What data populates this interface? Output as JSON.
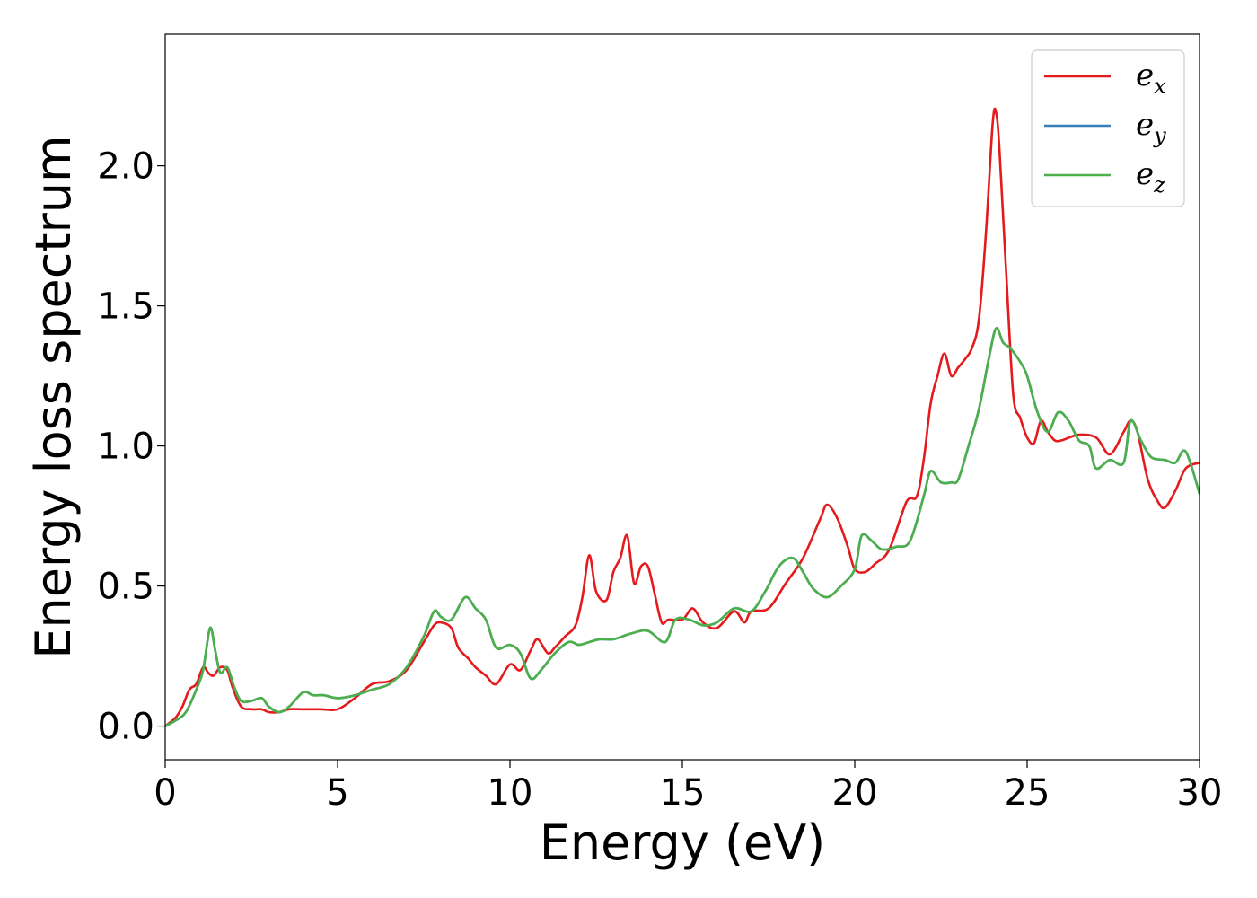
{
  "chart_data": {
    "type": "line",
    "title": "",
    "xlabel": "Energy (eV)",
    "ylabel": "Energy loss spectrum",
    "xlim": [
      0,
      30
    ],
    "ylim": [
      -0.12,
      2.47
    ],
    "xticks": [
      0,
      5,
      10,
      15,
      20,
      25,
      30
    ],
    "xtick_labels": [
      "0",
      "5",
      "10",
      "15",
      "20",
      "25",
      "30"
    ],
    "yticks": [
      0.0,
      0.5,
      1.0,
      1.5,
      2.0
    ],
    "ytick_labels": [
      "0.0",
      "0.5",
      "1.0",
      "1.5",
      "2.0"
    ],
    "grid": false,
    "legend_position": "top-right",
    "series": [
      {
        "name": "e",
        "subscript": "x",
        "color": "#e41a1c",
        "x": [
          0,
          0.3,
          0.5,
          0.7,
          0.9,
          1.1,
          1.25,
          1.4,
          1.6,
          1.8,
          1.95,
          2.2,
          2.5,
          2.8,
          3.0,
          3.3,
          3.6,
          4.0,
          4.5,
          5.0,
          5.5,
          6.0,
          6.5,
          7.0,
          7.5,
          7.8,
          8.0,
          8.3,
          8.5,
          8.8,
          9.0,
          9.3,
          9.6,
          10.0,
          10.3,
          10.6,
          10.8,
          11.1,
          11.3,
          11.6,
          11.9,
          12.1,
          12.3,
          12.5,
          12.8,
          13.0,
          13.2,
          13.4,
          13.6,
          13.8,
          14.0,
          14.2,
          14.4,
          14.6,
          15.0,
          15.3,
          15.6,
          16.0,
          16.5,
          16.8,
          17.0,
          17.5,
          18.0,
          18.5,
          19.0,
          19.2,
          19.5,
          19.8,
          20.0,
          20.3,
          20.6,
          21.0,
          21.5,
          21.8,
          22.0,
          22.2,
          22.4,
          22.6,
          22.8,
          23.0,
          23.2,
          23.4,
          23.6,
          23.8,
          24.0,
          24.1,
          24.2,
          24.4,
          24.6,
          24.8,
          25.0,
          25.2,
          25.4,
          25.6,
          25.8,
          26.0,
          26.5,
          27.0,
          27.4,
          27.8,
          28.0,
          28.2,
          28.5,
          28.8,
          29.0,
          29.3,
          29.6,
          30.0
        ],
        "y": [
          0,
          0.03,
          0.07,
          0.13,
          0.15,
          0.21,
          0.19,
          0.18,
          0.21,
          0.2,
          0.14,
          0.07,
          0.06,
          0.06,
          0.05,
          0.05,
          0.06,
          0.06,
          0.06,
          0.06,
          0.1,
          0.15,
          0.16,
          0.2,
          0.3,
          0.36,
          0.37,
          0.35,
          0.28,
          0.24,
          0.21,
          0.18,
          0.15,
          0.22,
          0.2,
          0.27,
          0.31,
          0.26,
          0.28,
          0.32,
          0.36,
          0.46,
          0.61,
          0.48,
          0.45,
          0.55,
          0.6,
          0.68,
          0.51,
          0.57,
          0.57,
          0.47,
          0.37,
          0.38,
          0.38,
          0.42,
          0.37,
          0.35,
          0.41,
          0.37,
          0.41,
          0.42,
          0.51,
          0.6,
          0.74,
          0.79,
          0.74,
          0.64,
          0.56,
          0.55,
          0.58,
          0.63,
          0.8,
          0.82,
          0.95,
          1.15,
          1.25,
          1.33,
          1.25,
          1.28,
          1.31,
          1.35,
          1.45,
          1.75,
          2.15,
          2.19,
          2.05,
          1.6,
          1.18,
          1.1,
          1.03,
          1.01,
          1.09,
          1.05,
          1.02,
          1.02,
          1.04,
          1.03,
          0.97,
          1.05,
          1.09,
          1.05,
          0.88,
          0.8,
          0.78,
          0.84,
          0.92,
          0.94
        ]
      },
      {
        "name": "e",
        "subscript": "y",
        "color": "#377eb8",
        "x": [
          0,
          0.3,
          0.6,
          0.9,
          1.1,
          1.3,
          1.45,
          1.6,
          1.8,
          2.0,
          2.2,
          2.5,
          2.8,
          3.0,
          3.3,
          3.6,
          4.0,
          4.3,
          4.6,
          5.0,
          5.5,
          6.0,
          6.5,
          7.0,
          7.5,
          7.8,
          8.0,
          8.3,
          8.7,
          9.0,
          9.3,
          9.6,
          10.0,
          10.3,
          10.6,
          10.9,
          11.3,
          11.7,
          12.0,
          12.3,
          12.6,
          13.0,
          13.5,
          14.0,
          14.5,
          14.8,
          15.2,
          15.6,
          16.0,
          16.5,
          17.0,
          17.4,
          17.8,
          18.2,
          18.5,
          18.8,
          19.2,
          19.6,
          20.0,
          20.2,
          20.5,
          20.8,
          21.2,
          21.6,
          22.0,
          22.2,
          22.5,
          22.8,
          23.0,
          23.3,
          23.6,
          23.9,
          24.1,
          24.3,
          24.5,
          24.8,
          25.0,
          25.3,
          25.6,
          25.9,
          26.2,
          26.5,
          26.8,
          27.0,
          27.4,
          27.8,
          28.0,
          28.3,
          28.6,
          29.0,
          29.3,
          29.6,
          30.0
        ],
        "y": [
          0,
          0.02,
          0.05,
          0.13,
          0.2,
          0.35,
          0.27,
          0.19,
          0.21,
          0.14,
          0.09,
          0.09,
          0.1,
          0.07,
          0.05,
          0.07,
          0.12,
          0.11,
          0.11,
          0.1,
          0.11,
          0.13,
          0.15,
          0.21,
          0.32,
          0.41,
          0.39,
          0.38,
          0.46,
          0.42,
          0.38,
          0.28,
          0.29,
          0.26,
          0.17,
          0.2,
          0.26,
          0.3,
          0.29,
          0.3,
          0.31,
          0.31,
          0.33,
          0.34,
          0.3,
          0.38,
          0.38,
          0.36,
          0.37,
          0.42,
          0.41,
          0.48,
          0.57,
          0.6,
          0.55,
          0.49,
          0.46,
          0.5,
          0.56,
          0.68,
          0.66,
          0.63,
          0.64,
          0.66,
          0.82,
          0.91,
          0.87,
          0.87,
          0.88,
          1.0,
          1.13,
          1.32,
          1.42,
          1.37,
          1.35,
          1.3,
          1.25,
          1.12,
          1.05,
          1.12,
          1.09,
          1.02,
          1.0,
          0.92,
          0.95,
          0.94,
          1.09,
          1.02,
          0.96,
          0.95,
          0.94,
          0.98,
          0.83
        ]
      },
      {
        "name": "e",
        "subscript": "z",
        "color": "#4daf4a",
        "x": [
          0,
          0.3,
          0.6,
          0.9,
          1.1,
          1.3,
          1.45,
          1.6,
          1.8,
          2.0,
          2.2,
          2.5,
          2.8,
          3.0,
          3.3,
          3.6,
          4.0,
          4.3,
          4.6,
          5.0,
          5.5,
          6.0,
          6.5,
          7.0,
          7.5,
          7.8,
          8.0,
          8.3,
          8.7,
          9.0,
          9.3,
          9.6,
          10.0,
          10.3,
          10.6,
          10.9,
          11.3,
          11.7,
          12.0,
          12.3,
          12.6,
          13.0,
          13.5,
          14.0,
          14.5,
          14.8,
          15.2,
          15.6,
          16.0,
          16.5,
          17.0,
          17.4,
          17.8,
          18.2,
          18.5,
          18.8,
          19.2,
          19.6,
          20.0,
          20.2,
          20.5,
          20.8,
          21.2,
          21.6,
          22.0,
          22.2,
          22.5,
          22.8,
          23.0,
          23.3,
          23.6,
          23.9,
          24.1,
          24.3,
          24.5,
          24.8,
          25.0,
          25.3,
          25.6,
          25.9,
          26.2,
          26.5,
          26.8,
          27.0,
          27.4,
          27.8,
          28.0,
          28.3,
          28.6,
          29.0,
          29.3,
          29.6,
          30.0
        ],
        "y": [
          0,
          0.02,
          0.05,
          0.13,
          0.2,
          0.35,
          0.27,
          0.19,
          0.21,
          0.14,
          0.09,
          0.09,
          0.1,
          0.07,
          0.05,
          0.07,
          0.12,
          0.11,
          0.11,
          0.1,
          0.11,
          0.13,
          0.15,
          0.21,
          0.32,
          0.41,
          0.39,
          0.38,
          0.46,
          0.42,
          0.38,
          0.28,
          0.29,
          0.26,
          0.17,
          0.2,
          0.26,
          0.3,
          0.29,
          0.3,
          0.31,
          0.31,
          0.33,
          0.34,
          0.3,
          0.38,
          0.38,
          0.36,
          0.37,
          0.42,
          0.41,
          0.48,
          0.57,
          0.6,
          0.55,
          0.49,
          0.46,
          0.5,
          0.56,
          0.68,
          0.66,
          0.63,
          0.64,
          0.66,
          0.82,
          0.91,
          0.87,
          0.87,
          0.88,
          1.0,
          1.13,
          1.32,
          1.42,
          1.37,
          1.35,
          1.3,
          1.25,
          1.12,
          1.05,
          1.12,
          1.09,
          1.02,
          1.0,
          0.92,
          0.95,
          0.94,
          1.09,
          1.02,
          0.96,
          0.95,
          0.94,
          0.98,
          0.83
        ]
      }
    ]
  }
}
